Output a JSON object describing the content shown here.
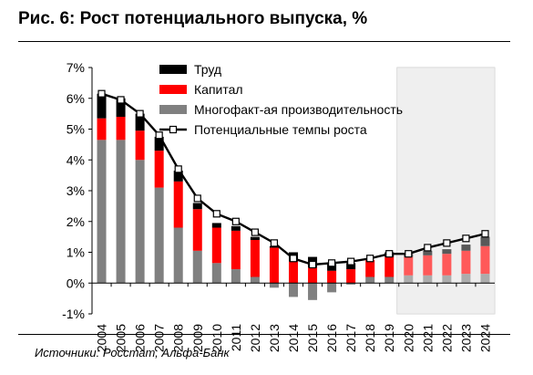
{
  "title": "Рис. 6: Рост потенциального выпуска, %",
  "source": "Источники: Росстат, Альфа-Банк",
  "colors": {
    "labor": "#000000",
    "capital": "#ff0000",
    "tfp": "#808080",
    "line": "#000000",
    "forecast_shade": "#e6e6e6"
  },
  "chart_data": {
    "type": "bar",
    "stacked": true,
    "ylim": [
      -1,
      7
    ],
    "y_ticks": [
      "-1%",
      "0%",
      "1%",
      "2%",
      "3%",
      "4%",
      "5%",
      "6%",
      "7%"
    ],
    "y_tick_values": [
      -1,
      0,
      1,
      2,
      3,
      4,
      5,
      6,
      7
    ],
    "grid": false,
    "legend_position": "top",
    "forecast_start": "2020",
    "categories": [
      "2004",
      "2005",
      "2006",
      "2007",
      "2008",
      "2009",
      "2010",
      "2011",
      "2012",
      "2013",
      "2014",
      "2015",
      "2016",
      "2017",
      "2018",
      "2019",
      "2020",
      "2021",
      "2022",
      "2023",
      "2024"
    ],
    "series": [
      {
        "name": "Труд",
        "kind": "bar",
        "color_key": "labor",
        "values": [
          0.8,
          0.6,
          0.55,
          0.45,
          0.35,
          0.2,
          0.15,
          0.15,
          0.1,
          0.05,
          0.3,
          0.35,
          0.25,
          0.2,
          0.0,
          0.15,
          0.1,
          0.15,
          0.15,
          0.2,
          0.3
        ]
      },
      {
        "name": "Капитал",
        "kind": "bar",
        "color_key": "capital",
        "values": [
          0.7,
          0.75,
          0.95,
          1.2,
          1.5,
          1.35,
          1.15,
          1.25,
          1.2,
          1.15,
          0.7,
          0.5,
          0.4,
          0.45,
          0.55,
          0.65,
          0.6,
          0.65,
          0.7,
          0.75,
          0.9
        ]
      },
      {
        "name": "Многофакт-ая производительность",
        "kind": "bar",
        "color_key": "tfp",
        "values": [
          4.65,
          4.65,
          4.0,
          3.1,
          1.8,
          1.05,
          0.65,
          0.45,
          0.2,
          -0.15,
          -0.45,
          -0.55,
          -0.3,
          -0.05,
          0.2,
          0.2,
          0.25,
          0.25,
          0.25,
          0.3,
          0.3
        ]
      },
      {
        "name": "Потенциальные темпы роста",
        "kind": "line",
        "color_key": "line",
        "values": [
          6.15,
          5.95,
          5.5,
          4.8,
          3.7,
          2.75,
          2.25,
          2.0,
          1.65,
          1.3,
          0.8,
          0.6,
          0.65,
          0.7,
          0.8,
          0.95,
          0.95,
          1.15,
          1.3,
          1.45,
          1.6
        ]
      }
    ]
  }
}
